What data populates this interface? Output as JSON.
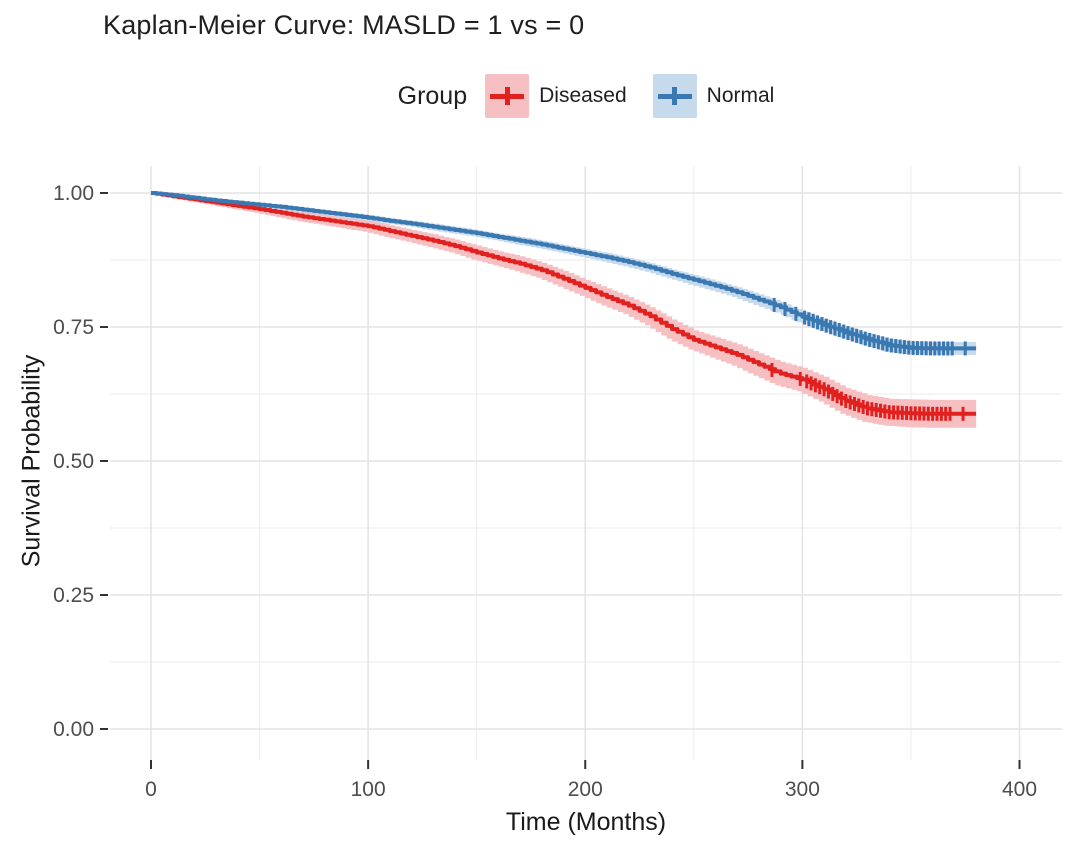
{
  "title": "Kaplan-Meier Curve: MASLD = 1 vs = 0",
  "colors": {
    "background": "#FFFFFF",
    "grid_major": "#E4E4E4",
    "grid_minor": "#EFEFEF",
    "axis_tick": "#333333",
    "tick_label": "#4D4D4D",
    "title_text": "#1F1F1F",
    "diseased_line": "#E1211F",
    "diseased_band": "#F6C0C3",
    "normal_line": "#3A78B2",
    "normal_band": "#C6DAEB"
  },
  "chart_data": {
    "type": "line",
    "subtype": "kaplan-meier-survival-step",
    "title": "Kaplan-Meier Curve: MASLD = 1 vs = 0",
    "legend_title": "Group",
    "legend_position": "top",
    "xlabel": "Time (Months)",
    "ylabel": "Survival Probability",
    "xlim": [
      0,
      400
    ],
    "ylim": [
      0,
      1
    ],
    "grid": true,
    "x_ticks": [
      0,
      100,
      200,
      300,
      400
    ],
    "x_minor_ticks": [
      50,
      150,
      250,
      350
    ],
    "y_tick_labels": [
      "1.00",
      "0.75",
      "0.50",
      "0.25",
      "0.00"
    ],
    "y_tick_values": [
      1.0,
      0.75,
      0.5,
      0.25,
      0.0
    ],
    "y_minor_ticks": [
      0.875,
      0.625,
      0.375,
      0.125
    ],
    "x": [
      0,
      10,
      20,
      30,
      40,
      50,
      60,
      70,
      80,
      90,
      100,
      110,
      120,
      130,
      140,
      150,
      160,
      170,
      180,
      190,
      200,
      210,
      220,
      230,
      240,
      250,
      260,
      270,
      280,
      290,
      300,
      310,
      320,
      330,
      340,
      350,
      360,
      370,
      380
    ],
    "series": [
      {
        "name": "Diseased",
        "color": "#E1211F",
        "band_color": "#F6C0C3",
        "values": [
          1.0,
          0.994,
          0.988,
          0.982,
          0.976,
          0.97,
          0.963,
          0.956,
          0.95,
          0.944,
          0.938,
          0.929,
          0.92,
          0.911,
          0.901,
          0.889,
          0.878,
          0.868,
          0.856,
          0.84,
          0.823,
          0.806,
          0.79,
          0.77,
          0.746,
          0.726,
          0.712,
          0.698,
          0.68,
          0.663,
          0.652,
          0.634,
          0.612,
          0.598,
          0.591,
          0.589,
          0.588,
          0.588,
          0.588
        ],
        "ci_halfwidth": [
          0.0,
          0.003,
          0.004,
          0.005,
          0.006,
          0.007,
          0.008,
          0.009,
          0.009,
          0.01,
          0.01,
          0.011,
          0.011,
          0.012,
          0.012,
          0.013,
          0.013,
          0.014,
          0.014,
          0.015,
          0.015,
          0.016,
          0.016,
          0.017,
          0.018,
          0.018,
          0.019,
          0.02,
          0.021,
          0.022,
          0.022,
          0.023,
          0.024,
          0.025,
          0.025,
          0.026,
          0.026,
          0.026,
          0.026
        ],
        "censor_times": [
          286,
          299,
          302,
          304,
          306,
          308,
          310,
          312,
          314,
          316,
          318,
          320,
          322,
          324,
          326,
          328,
          330,
          332,
          334,
          336,
          338,
          340,
          342,
          344,
          346,
          348,
          350,
          352,
          354,
          356,
          358,
          360,
          362,
          364,
          366,
          368,
          374
        ],
        "final_survival": 0.59
      },
      {
        "name": "Normal",
        "color": "#3A78B2",
        "band_color": "#C6DAEB",
        "values": [
          1.0,
          0.996,
          0.991,
          0.986,
          0.982,
          0.978,
          0.974,
          0.969,
          0.964,
          0.959,
          0.954,
          0.948,
          0.943,
          0.937,
          0.931,
          0.925,
          0.918,
          0.911,
          0.904,
          0.896,
          0.888,
          0.88,
          0.871,
          0.861,
          0.849,
          0.838,
          0.827,
          0.815,
          0.801,
          0.787,
          0.769,
          0.754,
          0.74,
          0.727,
          0.716,
          0.711,
          0.71,
          0.71,
          0.71
        ],
        "ci_halfwidth": [
          0.0,
          0.002,
          0.002,
          0.003,
          0.003,
          0.003,
          0.004,
          0.004,
          0.004,
          0.005,
          0.005,
          0.005,
          0.005,
          0.006,
          0.006,
          0.006,
          0.006,
          0.007,
          0.007,
          0.007,
          0.007,
          0.008,
          0.008,
          0.008,
          0.008,
          0.009,
          0.009,
          0.009,
          0.01,
          0.01,
          0.01,
          0.011,
          0.011,
          0.011,
          0.012,
          0.012,
          0.012,
          0.012,
          0.012
        ],
        "censor_times": [
          287,
          292,
          297,
          301,
          303,
          305,
          307,
          309,
          311,
          313,
          315,
          317,
          319,
          321,
          323,
          325,
          327,
          329,
          331,
          333,
          335,
          337,
          339,
          341,
          343,
          345,
          347,
          349,
          351,
          353,
          355,
          357,
          359,
          361,
          363,
          365,
          367,
          369,
          375
        ],
        "final_survival": 0.71
      }
    ]
  }
}
